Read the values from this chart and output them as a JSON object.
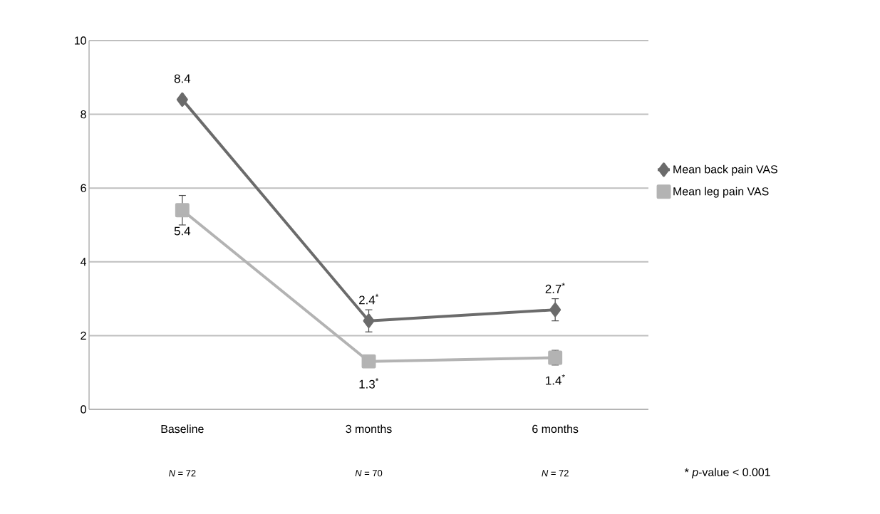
{
  "chart_data": {
    "type": "line",
    "categories": [
      "Baseline",
      "3 months",
      "6 months"
    ],
    "series": [
      {
        "name": "Mean back pain VAS",
        "color": "#6b6b6b",
        "marker": "diamond",
        "values": [
          8.4,
          2.4,
          2.7
        ],
        "errors": [
          null,
          0.3,
          0.3
        ],
        "value_labels": [
          "8.4",
          "2.4$^{*}$",
          "2.7$^{*}$"
        ]
      },
      {
        "name": "Mean leg pain VAS",
        "color": "#b3b3b3",
        "marker": "square",
        "values": [
          5.4,
          1.3,
          1.4
        ],
        "errors": [
          0.4,
          null,
          0.2
        ],
        "value_labels": [
          "5.4",
          "1.3$^{*}$",
          "1.4$^{*}$"
        ]
      }
    ],
    "ylim": [
      0,
      10
    ],
    "yticks": [
      0,
      2,
      4,
      6,
      8,
      10
    ],
    "grid": "y",
    "legend": "right",
    "annotations": [
      "*N* = 72",
      "*N* = 70",
      "*N* = 72",
      "* *p*-value < 0.001"
    ]
  }
}
